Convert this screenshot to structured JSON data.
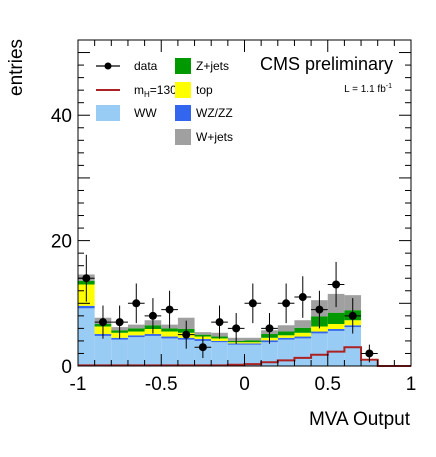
{
  "chart_data": {
    "type": "bar",
    "stacked": true,
    "xlabel": "MVA Output",
    "ylabel": "entries",
    "xlim": [
      -1,
      1
    ],
    "ylim": [
      0,
      52
    ],
    "xticks": [
      "-1",
      "-0.5",
      "0",
      "0.5",
      "1"
    ],
    "yticks": [
      "0",
      "20",
      "40"
    ],
    "header": "CMS preliminary",
    "lumi_label": "L = 1.1 fb",
    "lumi_sup": "-1",
    "bin_edges": [
      -1.0,
      -0.9,
      -0.8,
      -0.7,
      -0.6,
      -0.5,
      -0.4,
      -0.3,
      -0.2,
      -0.1,
      0.0,
      0.1,
      0.2,
      0.3,
      0.4,
      0.5,
      0.6,
      0.7,
      0.8,
      0.9,
      1.0
    ],
    "series": [
      {
        "name": "WW",
        "color": "#99ccf5",
        "values": [
          9.2,
          4.8,
          4.2,
          4.6,
          4.8,
          4.4,
          4.2,
          4.0,
          3.8,
          3.4,
          3.4,
          3.8,
          4.2,
          4.4,
          5.2,
          5.6,
          6.2,
          0.8,
          0,
          0
        ]
      },
      {
        "name": "WZ/ZZ",
        "color": "#3366ee",
        "values": [
          0.4,
          0.3,
          0.3,
          0.3,
          0.3,
          0.3,
          0.3,
          0.3,
          0.2,
          0.2,
          0.2,
          0.3,
          0.3,
          0.3,
          0.3,
          0.3,
          0.3,
          0,
          0,
          0
        ]
      },
      {
        "name": "top",
        "color": "#ffff00",
        "values": [
          3.4,
          1.2,
          0.8,
          0.6,
          0.8,
          0.8,
          0.8,
          0.4,
          0.4,
          0.2,
          0.2,
          0.4,
          0.4,
          0.6,
          0.8,
          0.8,
          0.8,
          0,
          0,
          0
        ]
      },
      {
        "name": "Z+jets",
        "color": "#009900",
        "values": [
          0.6,
          0.4,
          0.4,
          0.5,
          0.6,
          0.5,
          0.6,
          0.3,
          0.3,
          0.2,
          0.3,
          0.6,
          0.6,
          0.8,
          1.6,
          1.8,
          1.6,
          0,
          0,
          0
        ]
      },
      {
        "name": "W+jets",
        "color": "#a0a0a0",
        "values": [
          1.0,
          1.0,
          0.5,
          0.6,
          0.8,
          0.6,
          1.8,
          0.4,
          0.6,
          0.5,
          0.4,
          0.6,
          1.0,
          1.2,
          2.6,
          3.0,
          2.4,
          0,
          0,
          0
        ]
      }
    ],
    "signal": {
      "label_prefix": "m",
      "label_sub": "H",
      "label_suffix": "=130",
      "color": "#aa2222",
      "values": [
        0.1,
        0.1,
        0.1,
        0.1,
        0.1,
        0.1,
        0.1,
        0.1,
        0.1,
        0.2,
        0.3,
        0.6,
        0.9,
        1.3,
        1.8,
        2.3,
        3.0,
        1.0,
        0,
        0
      ]
    },
    "data": {
      "name": "data",
      "color": "#000000",
      "x": [
        -0.95,
        -0.85,
        -0.75,
        -0.65,
        -0.55,
        -0.45,
        -0.35,
        -0.25,
        -0.15,
        -0.05,
        0.05,
        0.15,
        0.25,
        0.35,
        0.45,
        0.55,
        0.65,
        0.75
      ],
      "y": [
        14,
        7,
        7,
        10,
        8,
        9,
        5,
        3,
        7,
        6,
        10,
        6,
        10,
        11,
        9,
        13,
        8,
        2
      ]
    },
    "legend_col1": [
      "data",
      "signal",
      "WW"
    ],
    "legend_col2": [
      "Z+jets",
      "top",
      "WZ/ZZ",
      "W+jets"
    ]
  }
}
